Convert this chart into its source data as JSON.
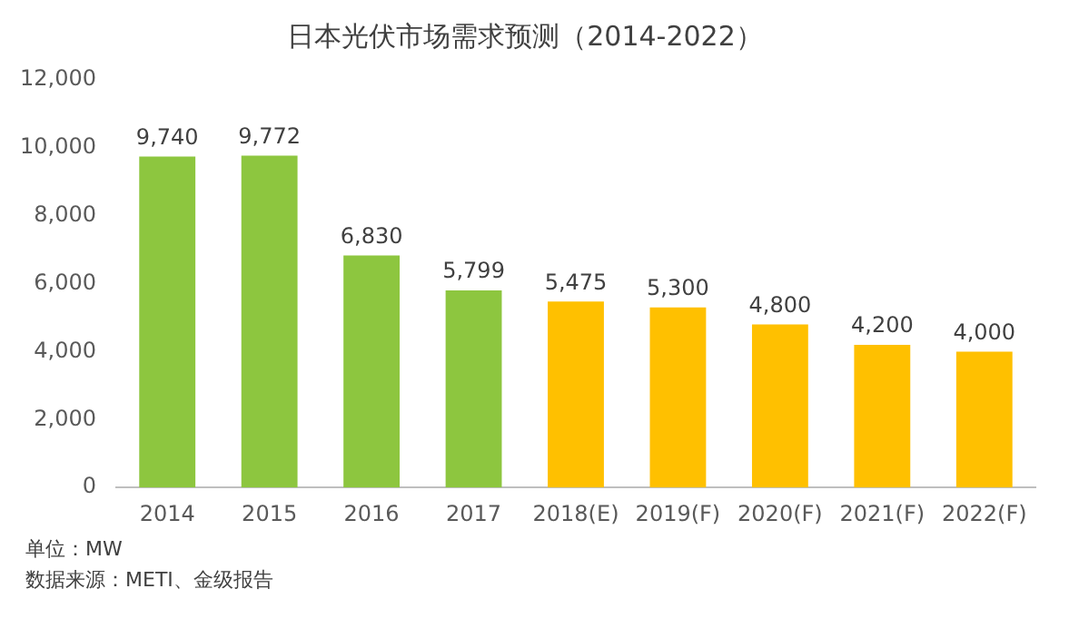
{
  "chart_data": {
    "type": "bar",
    "title": "日本光伏市场需求预测（2014-2022）",
    "categories": [
      "2014",
      "2015",
      "2016",
      "2017",
      "2018(E)",
      "2019(F)",
      "2020(F)",
      "2021(F)",
      "2022(F)"
    ],
    "values": [
      9740,
      9772,
      6830,
      5799,
      5475,
      5300,
      4800,
      4200,
      4000
    ],
    "colors": [
      "#8dc63f",
      "#8dc63f",
      "#8dc63f",
      "#8dc63f",
      "#ffc000",
      "#ffc000",
      "#ffc000",
      "#ffc000",
      "#ffc000"
    ],
    "value_labels": [
      "9,740",
      "9,772",
      "6,830",
      "5,799",
      "5,475",
      "5,300",
      "4,800",
      "4,200",
      "4,000"
    ],
    "ylim": [
      0,
      12000
    ],
    "yticks": [
      {
        "value": 0,
        "label": "0"
      },
      {
        "value": 2000,
        "label": "2,000"
      },
      {
        "value": 4000,
        "label": "4,000"
      },
      {
        "value": 6000,
        "label": "6,000"
      },
      {
        "value": 8000,
        "label": "8,000"
      },
      {
        "value": 10000,
        "label": "10,000"
      },
      {
        "value": 12000,
        "label": "12,000"
      }
    ],
    "grid": false,
    "legend": false,
    "annotations": [
      "单位：MW",
      "数据来源：METI、金级报告"
    ]
  }
}
